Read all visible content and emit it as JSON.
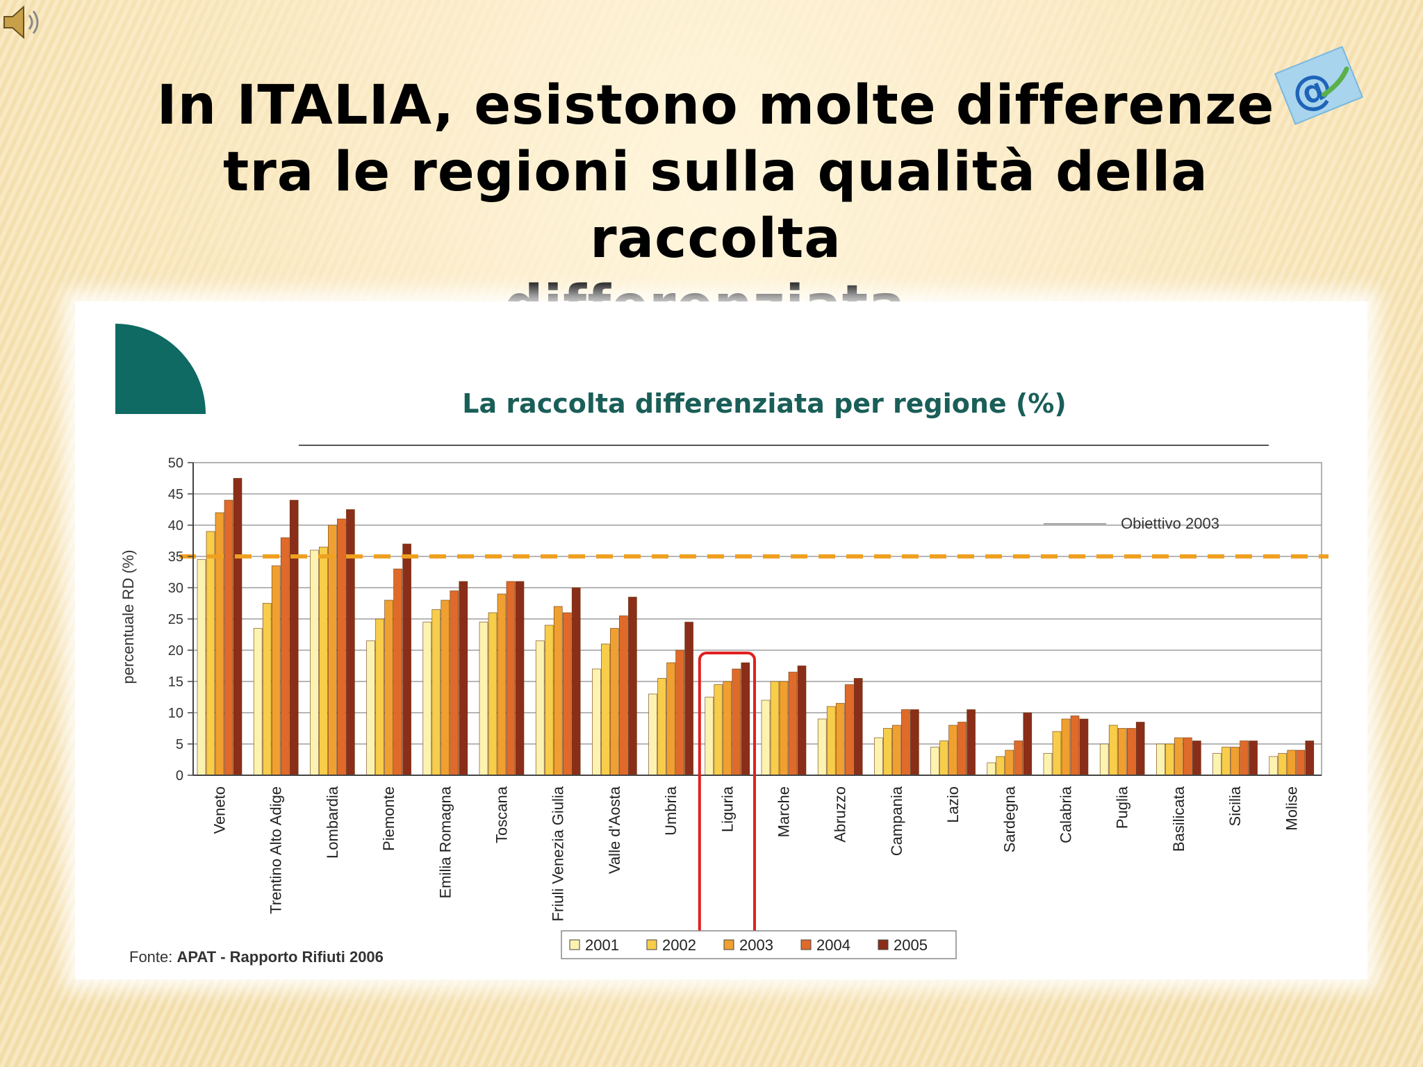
{
  "slide": {
    "title_lines": [
      "In ITALIA,  esistono molte differenze",
      "tra le regioni sulla qualità della raccolta",
      "differenziata."
    ]
  },
  "icons": {
    "speaker": "speaker-icon",
    "badge": "email-at-icon"
  },
  "colors": {
    "teal": "#0e6a63",
    "target_line": "#f0a020",
    "highlight": "#e02020",
    "series": [
      "#fdf3b0",
      "#f7cd4a",
      "#f0a030",
      "#e06a2a",
      "#8a2e1a"
    ]
  },
  "chart_data": {
    "type": "bar",
    "title": "La raccolta differenziata per regione (%)",
    "ylabel": "percentuale RD (%)",
    "xlabel": "",
    "ylim": [
      0,
      50
    ],
    "yticks": [
      0,
      5,
      10,
      15,
      20,
      25,
      30,
      35,
      40,
      45,
      50
    ],
    "grid": true,
    "legend_position": "bottom",
    "source": {
      "prefix": "Fonte: ",
      "bold": "APAT - Rapporto Rifiuti 2006"
    },
    "reference_line": {
      "label": "Obiettivo 2003",
      "value": 35
    },
    "highlighted_category": "Liguria",
    "categories": [
      "Veneto",
      "Trentino Alto Adige",
      "Lombardia",
      "Piemonte",
      "Emilia Romagna",
      "Toscana",
      "Friuli Venezia Giulia",
      "Valle d'Aosta",
      "Umbria",
      "Liguria",
      "Marche",
      "Abruzzo",
      "Campania",
      "Lazio",
      "Sardegna",
      "Calabria",
      "Puglia",
      "Basilicata",
      "Sicilia",
      "Molise"
    ],
    "series": [
      {
        "name": "2001",
        "values": [
          34.5,
          23.5,
          36,
          21.5,
          24.5,
          24.5,
          21.5,
          17,
          13,
          12.5,
          12,
          9,
          6,
          4.5,
          2,
          3.5,
          5,
          5,
          3.5,
          3
        ]
      },
      {
        "name": "2002",
        "values": [
          39,
          27.5,
          36.5,
          25,
          26.5,
          26,
          24,
          21,
          15.5,
          14.5,
          15,
          11,
          7.5,
          5.5,
          3,
          7,
          8,
          5,
          4.5,
          3.5
        ]
      },
      {
        "name": "2003",
        "values": [
          42,
          33.5,
          40,
          28,
          28,
          29,
          27,
          23.5,
          18,
          15,
          15,
          11.5,
          8,
          8,
          4,
          9,
          7.5,
          6,
          4.5,
          4
        ]
      },
      {
        "name": "2004",
        "values": [
          44,
          38,
          41,
          33,
          29.5,
          31,
          26,
          25.5,
          20,
          17,
          16.5,
          14.5,
          10.5,
          8.5,
          5.5,
          9.5,
          7.5,
          6,
          5.5,
          4
        ]
      },
      {
        "name": "2005",
        "values": [
          47.5,
          44,
          42.5,
          37,
          31,
          31,
          30,
          28.5,
          24.5,
          18,
          17.5,
          15.5,
          10.5,
          10.5,
          10,
          9,
          8.5,
          5.5,
          5.5,
          5.5
        ]
      }
    ]
  }
}
